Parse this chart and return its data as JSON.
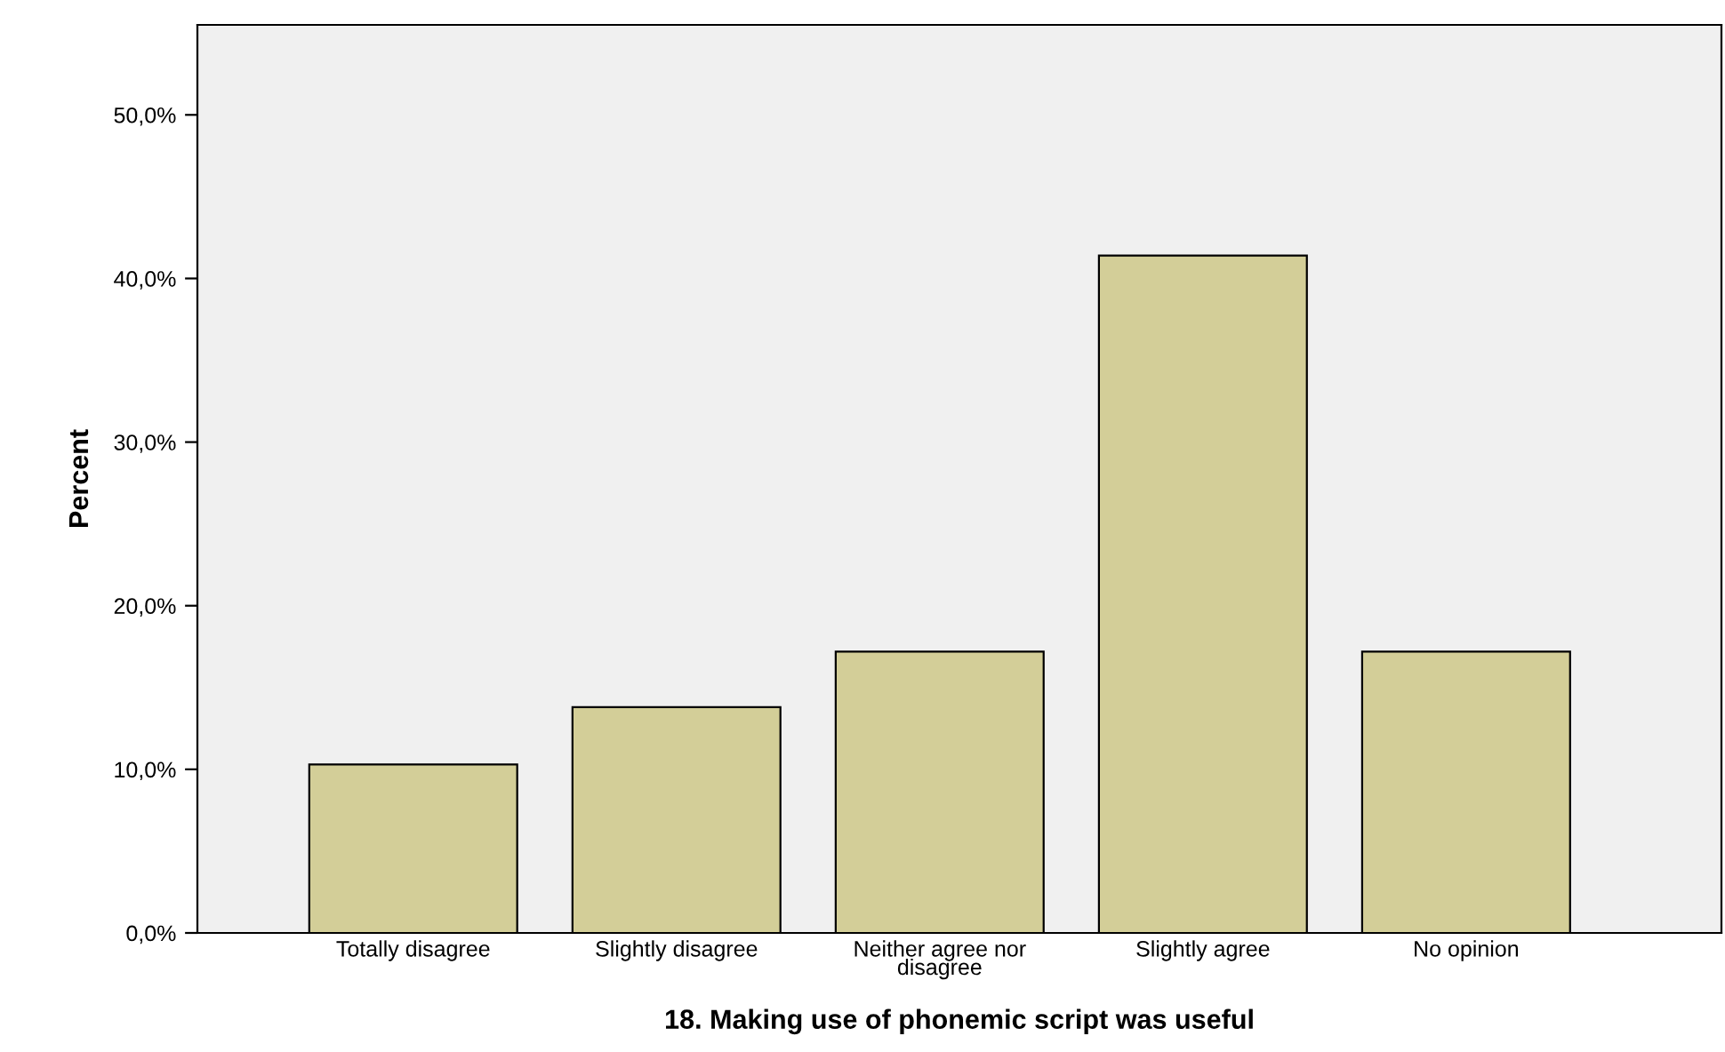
{
  "chart_data": {
    "type": "bar",
    "xlabel": "18. Making use of phonemic script was useful",
    "ylabel": "Percent",
    "categories": [
      "Totally disagree",
      "Slightly disagree",
      "Neither agree nor disagree",
      "Slightly agree",
      "No opinion"
    ],
    "values": [
      10.3,
      13.8,
      17.2,
      41.4,
      17.2
    ],
    "color": "#d3ce98",
    "ylim": [
      0,
      55.5
    ],
    "yticks": [
      {
        "value": 0,
        "label": "0,0%"
      },
      {
        "value": 10,
        "label": "10,0%"
      },
      {
        "value": 20,
        "label": "20,0%"
      },
      {
        "value": 30,
        "label": "30,0%"
      },
      {
        "value": 40,
        "label": "40,0%"
      },
      {
        "value": 50,
        "label": "50,0%"
      }
    ],
    "grid": false
  }
}
